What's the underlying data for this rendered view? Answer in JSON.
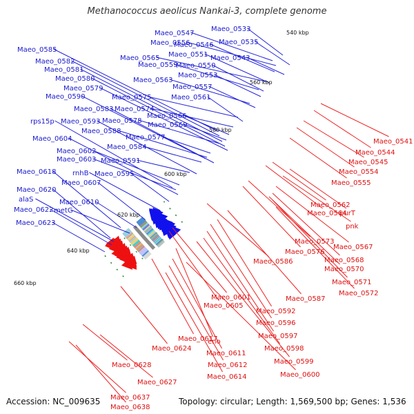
{
  "title": "Methanococcus aeolicus Nankai-3, complete genome",
  "footer": {
    "accession": "Accession: NC_009635",
    "topology": "Topology: circular; Length: 1,569,500 bp; Genes: 1,536"
  },
  "kbp_labels": [
    "540 kbp",
    "560 kbp",
    "580 kbp",
    "600 kbp",
    "620 kbp",
    "640 kbp",
    "660 kbp"
  ],
  "colors": {
    "forward_label": "#1a1acc",
    "reverse_label": "#dd1111",
    "forward_arrow": "#1111ee",
    "reverse_arrow": "#ee1111",
    "backbone": "#8a8a8a",
    "tick": "#228822"
  },
  "forward_genes": [
    "Maeo_0533",
    "Maeo_0547",
    "Maeo_0556",
    "Maeo_0546",
    "Maeo_0535",
    "Maeo_0585",
    "Maeo_0565",
    "Maeo_0551",
    "Maeo_0543",
    "Maeo_0582",
    "Maeo_0559",
    "Maeo_0550",
    "Maeo_0581",
    "Maeo_0553",
    "Maeo_0580",
    "Maeo_0563",
    "Maeo_0557",
    "Maeo_0579",
    "Maeo_0590",
    "Maeo_0575",
    "Maeo_0561",
    "Maeo_0583",
    "Maeo_0574",
    "Maeo_0566",
    "Maeo_0593",
    "Maeo_0578",
    "rps15p",
    "Maeo_0569",
    "Maeo_0588",
    "Maeo_0604",
    "Maeo_0577",
    "Maeo_0584",
    "Maeo_0602",
    "Maeo_0603",
    "Maeo_0591",
    "rnhB",
    "Maeo_0618",
    "Maeo_0595",
    "Maeo_0607",
    "Maeo_0620",
    "alaS",
    "Maeo_0610",
    "Maeo_0622",
    "metG",
    "Maeo_0623"
  ],
  "reverse_genes": [
    "Maeo_0541",
    "Maeo_0544",
    "Maeo_0545",
    "Maeo_0554",
    "Maeo_0555",
    "Maeo_0562",
    "purT",
    "Maeo_0564",
    "pnk",
    "Maeo_0573",
    "Maeo_0567",
    "Maeo_0576",
    "Maeo_0568",
    "Maeo_0586",
    "Maeo_0570",
    "Maeo_0571",
    "Maeo_0572",
    "Maeo_0601",
    "Maeo_0587",
    "Maeo_0605",
    "Maeo_0592",
    "Maeo_0596",
    "Maeo_0597",
    "Maeo_0617",
    "eno",
    "Maeo_0598",
    "Maeo_0624",
    "Maeo_0611",
    "Maeo_0599",
    "Maeo_0612",
    "Maeo_0628",
    "Maeo_0614",
    "Maeo_0600",
    "Maeo_0627",
    "Maeo_0637",
    "Maeo_0638"
  ]
}
